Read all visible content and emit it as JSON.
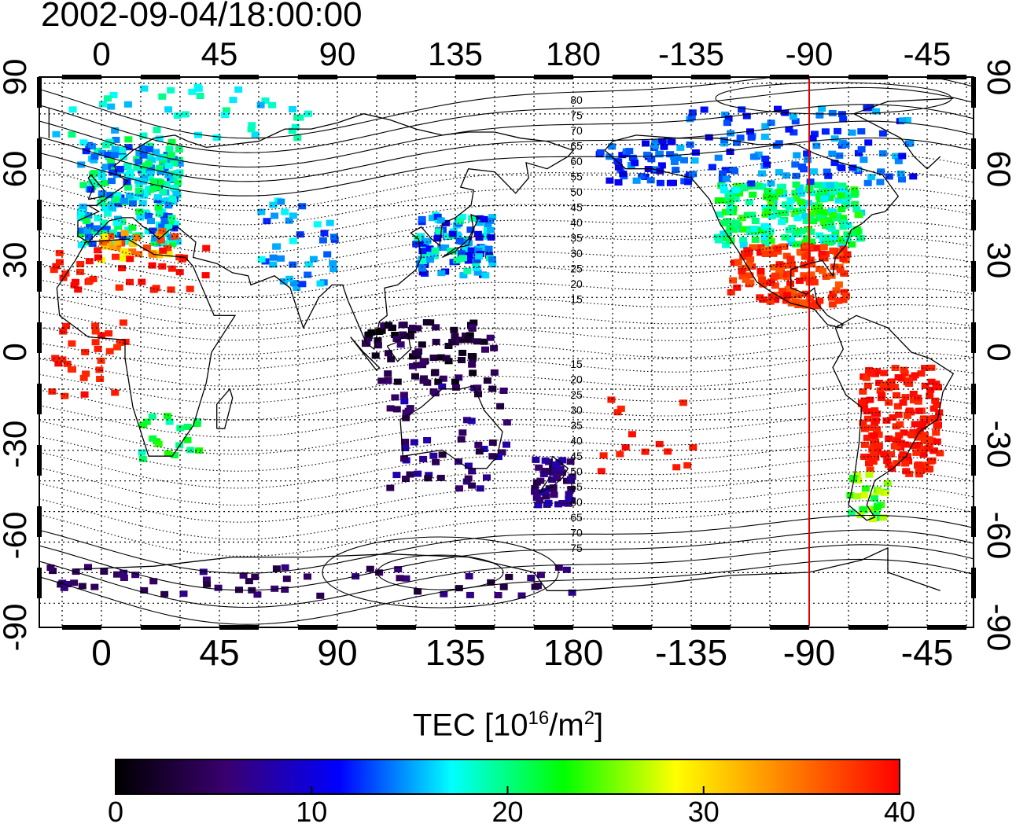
{
  "title": "2002-09-04/18:00:00",
  "map": {
    "top_lon_labels": [
      "0",
      "45",
      "90",
      "135",
      "180",
      "-135",
      "-90",
      "-45"
    ],
    "bottom_lon_labels": [
      "0",
      "45",
      "90",
      "135",
      "180",
      "-135",
      "-90",
      "-45"
    ],
    "left_lat_labels": [
      "90",
      "60",
      "30",
      "0",
      "-30",
      "-60",
      "-90"
    ],
    "right_lat_labels": [
      "90",
      "60",
      "30",
      "0",
      "-30",
      "-60",
      "-90"
    ],
    "contour_labels_north": [
      "80",
      "75",
      "70",
      "65",
      "60",
      "55",
      "50",
      "45",
      "40",
      "35",
      "30",
      "25",
      "20",
      "15"
    ],
    "contour_labels_south": [
      "15",
      "20",
      "25",
      "30",
      "35",
      "40",
      "45",
      "50",
      "55",
      "60",
      "65",
      "70",
      "75"
    ],
    "meridian_line_lon": -90,
    "meridian_line_color": "#dd0000"
  },
  "colorbar": {
    "title_prefix": "TEC  [10",
    "title_exp": "16",
    "title_mid": "/m",
    "title_exp2": "2",
    "title_suffix": "]",
    "min": 0,
    "max": 40,
    "tick_labels": [
      "0",
      "10",
      "20",
      "30",
      "40"
    ],
    "colors": [
      "#000000",
      "#3a0070",
      "#0000ff",
      "#00ffff",
      "#00ff00",
      "#ffff00",
      "#ff8000",
      "#ff0000"
    ]
  }
}
